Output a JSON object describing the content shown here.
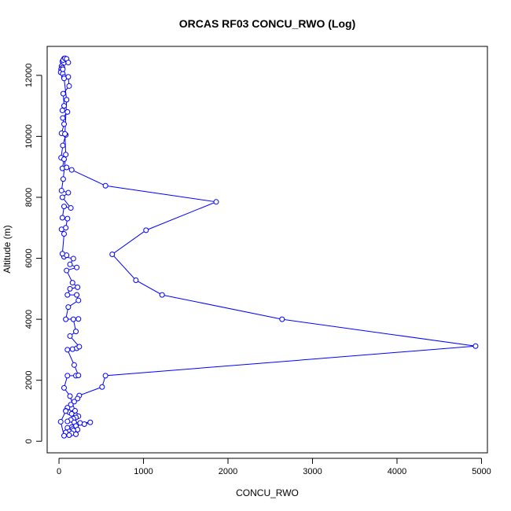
{
  "chart_data": {
    "type": "line",
    "title": "ORCAS RF03 CONCU_RWO (Log)",
    "xlabel": "CONCU_RWO",
    "ylabel": "Altitude (m)",
    "xlim": [
      -140,
      5070
    ],
    "ylim": [
      -380,
      12950
    ],
    "xticks": [
      0,
      1000,
      2000,
      3000,
      4000,
      5000
    ],
    "yticks": [
      0,
      2000,
      4000,
      6000,
      8000,
      10000,
      12000
    ],
    "grid": false,
    "legend": "none",
    "marker": "open-circle",
    "colors": {
      "series": "#0000ff",
      "axes": "#000000"
    },
    "series": [
      {
        "values": [
          [
            60,
            12550
          ],
          [
            50,
            12500
          ],
          [
            40,
            12450
          ],
          [
            55,
            12400
          ],
          [
            30,
            12300
          ],
          [
            40,
            12250
          ],
          [
            25,
            12200
          ],
          [
            35,
            12150
          ],
          [
            20,
            12100
          ],
          [
            45,
            12050
          ],
          [
            60,
            11950
          ],
          [
            110,
            11950
          ],
          [
            120,
            11650
          ],
          [
            50,
            11400
          ],
          [
            60,
            11000
          ],
          [
            40,
            10850
          ],
          [
            100,
            10800
          ],
          [
            45,
            10600
          ],
          [
            60,
            10400
          ],
          [
            30,
            10100
          ],
          [
            80,
            10050
          ],
          [
            45,
            9700
          ],
          [
            25,
            9300
          ],
          [
            60,
            9250
          ],
          [
            40,
            8950
          ],
          [
            90,
            8980
          ],
          [
            150,
            8900
          ],
          [
            550,
            8380
          ],
          [
            1860,
            7850
          ],
          [
            1030,
            6920
          ],
          [
            630,
            6130
          ],
          [
            910,
            5280
          ],
          [
            1220,
            4800
          ],
          [
            2640,
            4000
          ],
          [
            4930,
            3120
          ],
          [
            550,
            2150
          ],
          [
            510,
            1780
          ],
          [
            240,
            1500
          ],
          [
            220,
            1400
          ],
          [
            180,
            1300
          ],
          [
            140,
            1200
          ],
          [
            100,
            1100
          ],
          [
            80,
            1000
          ],
          [
            120,
            950
          ],
          [
            150,
            900
          ],
          [
            200,
            850
          ],
          [
            230,
            820
          ],
          [
            200,
            780
          ],
          [
            170,
            740
          ],
          [
            140,
            700
          ],
          [
            100,
            650
          ],
          [
            180,
            620
          ],
          [
            250,
            600
          ],
          [
            370,
            620
          ],
          [
            300,
            560
          ],
          [
            200,
            500
          ],
          [
            150,
            460
          ],
          [
            100,
            440
          ],
          [
            160,
            400
          ],
          [
            220,
            380
          ],
          [
            170,
            350
          ],
          [
            120,
            320
          ],
          [
            80,
            290
          ],
          [
            150,
            260
          ],
          [
            200,
            230
          ],
          [
            120,
            200
          ],
          [
            60,
            180
          ],
          [
            20,
            640
          ],
          [
            80,
            990
          ],
          [
            190,
            1000
          ],
          [
            130,
            1480
          ],
          [
            60,
            1750
          ],
          [
            100,
            2150
          ],
          [
            200,
            2150
          ],
          [
            230,
            2160
          ],
          [
            180,
            2500
          ],
          [
            100,
            3000
          ],
          [
            160,
            3020
          ],
          [
            210,
            3050
          ],
          [
            240,
            3100
          ],
          [
            130,
            3450
          ],
          [
            200,
            3600
          ],
          [
            170,
            4000
          ],
          [
            230,
            4010
          ],
          [
            80,
            4000
          ],
          [
            110,
            4400
          ],
          [
            230,
            4620
          ],
          [
            210,
            4800
          ],
          [
            100,
            4800
          ],
          [
            130,
            5000
          ],
          [
            220,
            5050
          ],
          [
            160,
            5200
          ],
          [
            90,
            5600
          ],
          [
            210,
            5700
          ],
          [
            130,
            5800
          ],
          [
            170,
            5990
          ],
          [
            60,
            6050
          ],
          [
            90,
            6100
          ],
          [
            40,
            6150
          ],
          [
            60,
            6800
          ],
          [
            30,
            6950
          ],
          [
            80,
            7000
          ],
          [
            100,
            7300
          ],
          [
            40,
            7330
          ],
          [
            60,
            7700
          ],
          [
            140,
            7650
          ],
          [
            40,
            8000
          ],
          [
            110,
            8150
          ],
          [
            30,
            8220
          ],
          [
            50,
            8600
          ],
          [
            80,
            9400
          ],
          [
            70,
            10080
          ],
          [
            90,
            11200
          ],
          [
            60,
            11900
          ],
          [
            45,
            12200
          ],
          [
            50,
            12500
          ],
          [
            70,
            12560
          ],
          [
            90,
            12540
          ],
          [
            110,
            12420
          ]
        ]
      }
    ]
  }
}
